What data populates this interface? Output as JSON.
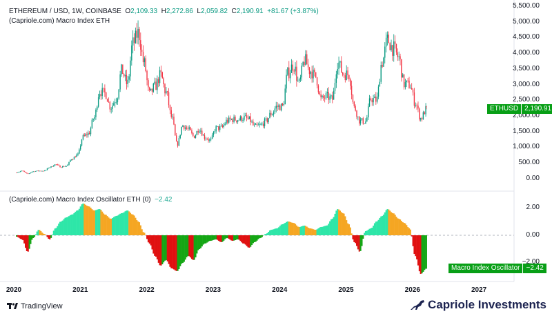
{
  "legend": {
    "symbol": "ETHEREUM / USD, 1W, COINBASE",
    "open_label": "O",
    "open": "2,109.33",
    "high_label": "H",
    "high": "2,272.86",
    "low_label": "L",
    "low": "2,059.82",
    "close_label": "C",
    "close": "2,190.91",
    "change": "+81.67 (+3.87%)",
    "indicator": "(Capriole.com) Macro Index ETH",
    "oscillator": "(Capriole.com) Macro Index Oscillator ETH (0)",
    "oscillator_value": "−2.42"
  },
  "price_axis": [
    "5,500.00",
    "5,000.00",
    "4,500.00",
    "4,000.00",
    "3,500.00",
    "3,000.00",
    "2,500.00",
    "2,000.00",
    "1,500.00",
    "1,000.00",
    "500.00",
    "0.00"
  ],
  "osc_axis": [
    "2.00",
    "0.00",
    "−2.00"
  ],
  "time_axis": [
    "2020",
    "2021",
    "2022",
    "2023",
    "2024",
    "2025",
    "2026",
    "2027"
  ],
  "price_tag": {
    "label": "ETHUSD",
    "value": "2,190.91"
  },
  "osc_tag": {
    "label": "Macro Index Oscillator",
    "value": "−2.42"
  },
  "footer": {
    "tradingview": "TradingView",
    "brand": "Capriole Investments"
  },
  "colors": {
    "up": "#089981",
    "down": "#f23645",
    "osc_pos_rising": "#2ee6a8",
    "osc_pos_falling": "#f5a623",
    "osc_neg_falling": "#e01010",
    "osc_neg_rising": "#14a614",
    "tag": "#089f16"
  },
  "chart_data": [
    {
      "type": "candlestick",
      "interval": "monthly closes (approx.)",
      "start": "2020-01",
      "ylim": [
        0,
        5500
      ],
      "closes": [
        180,
        225,
        135,
        210,
        230,
        230,
        345,
        430,
        360,
        385,
        615,
        735,
        1310,
        1420,
        1920,
        2770,
        2700,
        2270,
        2530,
        3430,
        3000,
        4290,
        4630,
        3680,
        2680,
        2920,
        3280,
        2730,
        1940,
        1070,
        1680,
        1550,
        1330,
        1570,
        1300,
        1200,
        1590,
        1600,
        1820,
        1870,
        1870,
        1930,
        1860,
        1640,
        1670,
        1810,
        2050,
        2280,
        2280,
        3350,
        3600,
        3010,
        3760,
        3430,
        3230,
        2510,
        2600,
        2510,
        3700,
        3330,
        3300,
        2240,
        1820,
        1800,
        2530,
        2480,
        3700,
        4400,
        4140,
        3850,
        3000,
        2970,
        2400,
        1900,
        2190.91
      ]
    },
    {
      "type": "area",
      "name": "Macro Index Oscillator ETH",
      "start": "2020-01",
      "ylim": [
        -3,
        2.5
      ],
      "values": [
        -0.1,
        -0.3,
        -1.2,
        -0.2,
        0.4,
        0.1,
        -0.3,
        0.5,
        1.0,
        1.3,
        1.5,
        1.8,
        2.3,
        2.1,
        1.8,
        1.9,
        1.5,
        1.2,
        1.4,
        1.6,
        1.8,
        1.5,
        1.0,
        0.2,
        -0.6,
        -1.5,
        -2.2,
        -1.8,
        -2.4,
        -2.6,
        -2.0,
        -1.5,
        -1.8,
        -1.0,
        -0.6,
        -0.4,
        -0.3,
        -0.5,
        -0.2,
        -0.4,
        -0.3,
        -0.6,
        -0.9,
        -0.5,
        -0.2,
        0.1,
        0.4,
        0.5,
        0.8,
        1.0,
        0.9,
        0.6,
        0.7,
        0.5,
        0.4,
        0.6,
        0.7,
        1.2,
        1.9,
        1.6,
        0.8,
        -0.5,
        -1.2,
        0.3,
        0.5,
        1.0,
        1.4,
        1.9,
        1.6,
        1.2,
        0.9,
        0.5,
        -1.5,
        -2.8,
        -2.42
      ]
    }
  ]
}
